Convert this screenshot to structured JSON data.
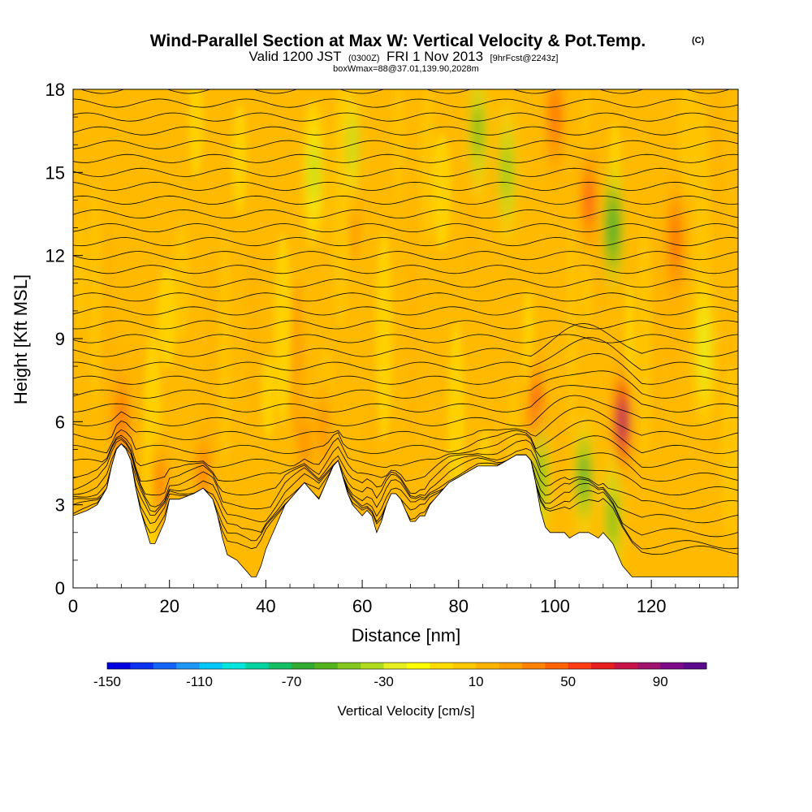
{
  "chart_data": {
    "type": "heatmap",
    "title": "Wind-Parallel Section at Max W: Vertical Velocity & Pot.Temp.",
    "title_mark": "(C)",
    "subtitle_parts": [
      "Valid 1200 JST",
      "(0300Z)",
      "FRI 1 Nov 2013",
      "[9hrFcst@2243z]"
    ],
    "subtitle_line2": "boxWmax=88@37.01,139.90,2028m",
    "xlabel": "Distance [nm]",
    "ylabel": "Height [Kft MSL]",
    "xlim": [
      0,
      138
    ],
    "ylim": [
      0,
      18
    ],
    "x_ticks": [
      0,
      20,
      40,
      60,
      80,
      100,
      120
    ],
    "y_ticks": [
      0,
      3,
      6,
      9,
      12,
      15,
      18
    ],
    "colorbar": {
      "label": "Vertical Velocity [cm/s]",
      "tick_labels": [
        "-150",
        "-110",
        "-70",
        "-30",
        "10",
        "50",
        "90"
      ],
      "levels": [
        -150,
        -140,
        -130,
        -120,
        -110,
        -100,
        -90,
        -80,
        -70,
        -60,
        -50,
        -40,
        -30,
        -20,
        -10,
        0,
        10,
        20,
        30,
        40,
        50,
        60,
        70,
        80,
        90,
        100
      ],
      "colors": [
        "#0000e0",
        "#0a32f0",
        "#1464f5",
        "#1e96f5",
        "#00c8ff",
        "#00e6dc",
        "#00d2a0",
        "#14be64",
        "#32aa32",
        "#55b41e",
        "#82c81e",
        "#afdc1e",
        "#e6f01e",
        "#ffff00",
        "#ffdc00",
        "#ffc800",
        "#ffb400",
        "#ffa000",
        "#ff8200",
        "#ff6400",
        "#ff3c14",
        "#e61e1e",
        "#c81446",
        "#a0146e",
        "#7d0a87",
        "#5a0a8c"
      ]
    },
    "terrain_heights_kft": [
      [
        0,
        2.6
      ],
      [
        3,
        2.8
      ],
      [
        5,
        3.0
      ],
      [
        7,
        3.6
      ],
      [
        8,
        4.4
      ],
      [
        9,
        5.0
      ],
      [
        10,
        5.2
      ],
      [
        11,
        5.0
      ],
      [
        12,
        4.6
      ],
      [
        13,
        3.6
      ],
      [
        14,
        2.8
      ],
      [
        15,
        2.2
      ],
      [
        16,
        1.6
      ],
      [
        17,
        1.6
      ],
      [
        19,
        2.4
      ],
      [
        20,
        3.2
      ],
      [
        22,
        3.2
      ],
      [
        25,
        3.4
      ],
      [
        27,
        3.6
      ],
      [
        29,
        3.2
      ],
      [
        30,
        2.6
      ],
      [
        31,
        1.8
      ],
      [
        32,
        1.2
      ],
      [
        34,
        1.0
      ],
      [
        36,
        0.6
      ],
      [
        37,
        0.4
      ],
      [
        38,
        0.4
      ],
      [
        39,
        0.8
      ],
      [
        40,
        1.4
      ],
      [
        42,
        2.2
      ],
      [
        44,
        3.0
      ],
      [
        46,
        3.4
      ],
      [
        48,
        3.8
      ],
      [
        49,
        3.6
      ],
      [
        50,
        3.4
      ],
      [
        51,
        3.2
      ],
      [
        53,
        4.0
      ],
      [
        54,
        4.4
      ],
      [
        55,
        4.6
      ],
      [
        57,
        3.4
      ],
      [
        58,
        3.0
      ],
      [
        59,
        2.8
      ],
      [
        60,
        2.6
      ],
      [
        61,
        2.8
      ],
      [
        62,
        2.6
      ],
      [
        63,
        2.0
      ],
      [
        64,
        2.4
      ],
      [
        65,
        3.0
      ],
      [
        66,
        3.4
      ],
      [
        67,
        3.4
      ],
      [
        68,
        3.2
      ],
      [
        69,
        2.8
      ],
      [
        70,
        2.4
      ],
      [
        71,
        2.4
      ],
      [
        72,
        2.6
      ],
      [
        73,
        2.6
      ],
      [
        74,
        3.0
      ],
      [
        75,
        3.2
      ],
      [
        76,
        3.4
      ],
      [
        78,
        3.8
      ],
      [
        80,
        4.0
      ],
      [
        82,
        4.2
      ],
      [
        84,
        4.4
      ],
      [
        88,
        4.4
      ],
      [
        90,
        4.6
      ],
      [
        92,
        4.8
      ],
      [
        94,
        4.8
      ],
      [
        95,
        4.6
      ],
      [
        96,
        3.8
      ],
      [
        97,
        2.8
      ],
      [
        98,
        2.2
      ],
      [
        99,
        2.0
      ],
      [
        101,
        2.0
      ],
      [
        102,
        2.0
      ],
      [
        103,
        1.8
      ],
      [
        105,
        2.0
      ],
      [
        107,
        2.0
      ],
      [
        109,
        1.8
      ],
      [
        110,
        2.0
      ],
      [
        111,
        1.8
      ],
      [
        112,
        1.6
      ],
      [
        113,
        1.2
      ],
      [
        114,
        0.8
      ],
      [
        115,
        0.6
      ],
      [
        116,
        0.4
      ],
      [
        118,
        0.4
      ],
      [
        124,
        0.4
      ],
      [
        130,
        0.4
      ],
      [
        136,
        0.4
      ],
      [
        138,
        0.4
      ]
    ],
    "updraft_features": [
      {
        "x": 10,
        "z": 6.0,
        "w": 45
      },
      {
        "x": 18,
        "z": 3.8,
        "w": 40
      },
      {
        "x": 27,
        "z": 4.2,
        "w": 40
      },
      {
        "x": 48,
        "z": 5.2,
        "w": 35
      },
      {
        "x": 52,
        "z": 5.8,
        "w": 35
      },
      {
        "x": 96,
        "z": 6.5,
        "w": 55
      },
      {
        "x": 107,
        "z": 14.0,
        "w": 55
      },
      {
        "x": 114,
        "z": 6.0,
        "w": 88
      },
      {
        "x": 125,
        "z": 12.5,
        "w": 45
      },
      {
        "x": 100,
        "z": 17.0,
        "w": 45
      }
    ],
    "downdraft_features": [
      {
        "x": 50,
        "z": 15.0,
        "w": -35
      },
      {
        "x": 58,
        "z": 16.0,
        "w": -35
      },
      {
        "x": 84,
        "z": 16.5,
        "w": -55
      },
      {
        "x": 90,
        "z": 15.0,
        "w": -45
      },
      {
        "x": 97,
        "z": 4.0,
        "w": -55
      },
      {
        "x": 106,
        "z": 4.0,
        "w": -65
      },
      {
        "x": 112,
        "z": 13.0,
        "w": -70
      },
      {
        "x": 112,
        "z": 2.5,
        "w": -55
      },
      {
        "x": 131,
        "z": 8.5,
        "w": -30
      }
    ]
  }
}
